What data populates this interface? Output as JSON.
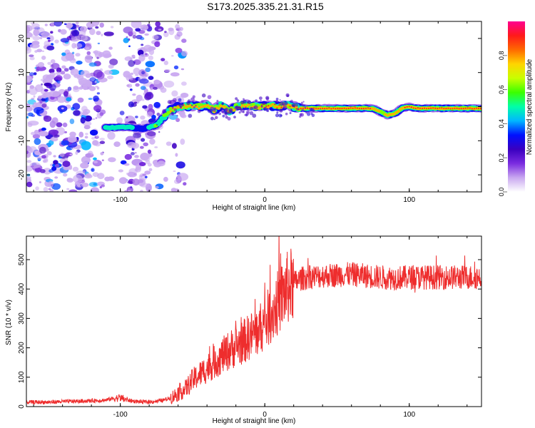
{
  "title": "S173.2025.335.21.31.R15",
  "chart_data": [
    {
      "type": "heatmap",
      "title": "S173.2025.335.21.31.R15",
      "xlabel": "Height of straight line (km)",
      "ylabel": "Frequency (Hz)",
      "xlim": [
        -165,
        150
      ],
      "ylim": [
        -25,
        25
      ],
      "xticks": [
        -100,
        0,
        100
      ],
      "yticks": [
        -20,
        -10,
        0,
        10,
        20
      ],
      "colorbar": {
        "label": "Normalized spectral amplitude",
        "lim": [
          0,
          1
        ],
        "ticks": [
          0.0,
          0.2,
          0.4,
          0.6,
          0.8
        ],
        "tick_labels": [
          "0.0",
          "0.2",
          "0.4",
          "0.6",
          "0.8"
        ],
        "colors": [
          "#ffffff",
          "#c9a8f0",
          "#7a2be0",
          "#3a00c0",
          "#0010ff",
          "#00b7ff",
          "#00ffa8",
          "#3bff00",
          "#c8ff00",
          "#ffd400",
          "#ff6a00",
          "#ff1a1a",
          "#ff0090"
        ]
      },
      "ridge": {
        "heights_km": [
          -110,
          -100,
          -95,
          -85,
          -80,
          -75,
          -70,
          -65,
          -60,
          -55,
          -50,
          -45,
          -40,
          -35,
          -30,
          -25,
          -20,
          -15,
          -10,
          -5,
          0,
          5,
          10,
          15,
          20,
          25,
          30,
          40,
          50,
          60,
          70,
          75,
          80,
          85,
          90,
          95,
          100,
          105,
          110,
          120,
          130,
          140,
          150
        ],
        "freq_hz": [
          -6.2,
          -6.0,
          -6.0,
          -6.5,
          -6.0,
          -5.5,
          -3.0,
          -1.0,
          0.0,
          0.0,
          0.2,
          0.0,
          0.5,
          -1.0,
          0.5,
          -1.5,
          0.0,
          0.5,
          0.3,
          0.0,
          0.2,
          0.2,
          0.0,
          0.5,
          0.0,
          -0.5,
          -0.5,
          -0.5,
          -0.5,
          -0.5,
          -0.5,
          -0.5,
          -1.5,
          -2.5,
          -2.0,
          -0.5,
          0.0,
          -0.5,
          -0.5,
          -0.5,
          -0.5,
          -0.5,
          -0.5
        ],
        "amplitude": [
          0.45,
          0.55,
          0.5,
          0.35,
          0.45,
          0.55,
          0.6,
          0.7,
          0.8,
          0.75,
          0.85,
          0.8,
          0.85,
          0.75,
          0.8,
          0.75,
          0.85,
          0.8,
          0.8,
          0.85,
          0.9,
          0.85,
          0.9,
          0.85,
          0.9,
          0.9,
          0.92,
          0.92,
          0.92,
          0.92,
          0.9,
          0.85,
          0.7,
          0.75,
          0.8,
          0.85,
          0.9,
          0.9,
          0.92,
          0.92,
          0.92,
          0.92,
          0.92
        ]
      },
      "noise_region_km": [
        -165,
        -60
      ]
    },
    {
      "type": "line",
      "xlabel": "Height of straight line (km)",
      "ylabel": "SNR (10 * v/v)",
      "xlim": [
        -165,
        150
      ],
      "ylim": [
        0,
        580
      ],
      "xticks": [
        -100,
        0,
        100
      ],
      "yticks": [
        0,
        100,
        200,
        300,
        400,
        500
      ],
      "series": [
        {
          "name": "SNR",
          "color": "#ee2d2d",
          "x": [
            -165,
            -150,
            -140,
            -130,
            -120,
            -110,
            -105,
            -100,
            -95,
            -90,
            -85,
            -80,
            -75,
            -70,
            -65,
            -60,
            -55,
            -50,
            -45,
            -40,
            -35,
            -30,
            -25,
            -20,
            -15,
            -10,
            -5,
            0,
            5,
            10,
            15,
            20,
            25,
            30,
            40,
            50,
            60,
            70,
            80,
            90,
            100,
            110,
            120,
            130,
            140,
            150
          ],
          "y": [
            15,
            15,
            17,
            18,
            20,
            22,
            28,
            30,
            22,
            18,
            16,
            16,
            18,
            22,
            30,
            45,
            60,
            90,
            110,
            130,
            150,
            170,
            190,
            205,
            220,
            240,
            255,
            285,
            320,
            360,
            400,
            420,
            435,
            440,
            445,
            448,
            450,
            445,
            440,
            438,
            440,
            440,
            440,
            440,
            440,
            440
          ]
        }
      ]
    }
  ]
}
